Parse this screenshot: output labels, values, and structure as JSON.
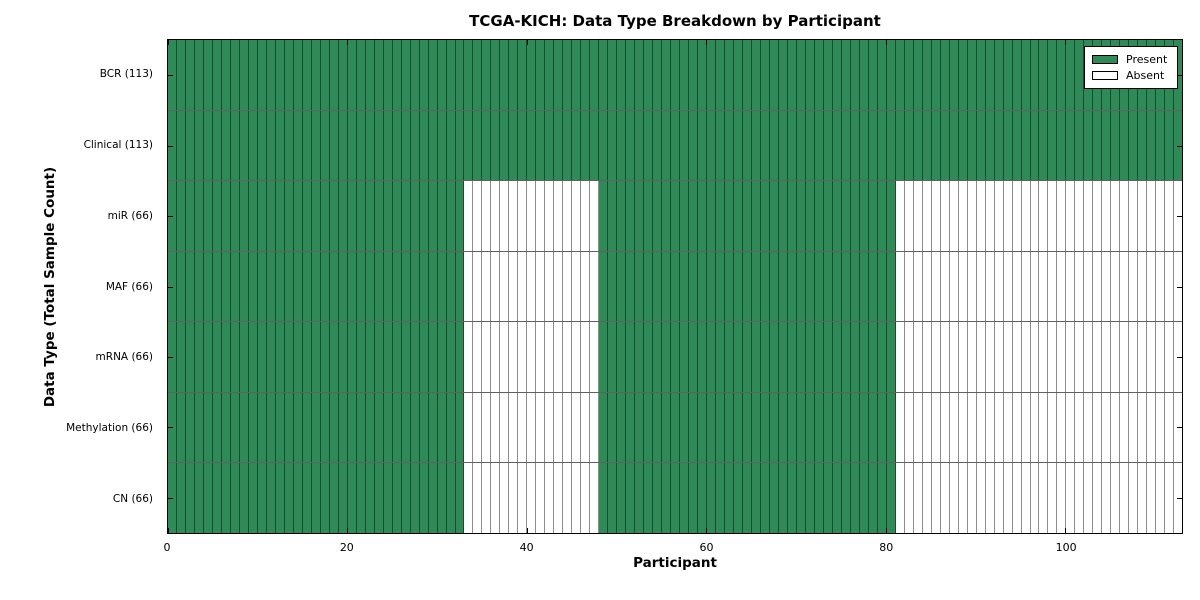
{
  "chart_data": {
    "type": "heatmap",
    "title": "TCGA-KICH: Data Type Breakdown by Participant",
    "xlabel": "Participant",
    "ylabel": "Data Type (Total Sample Count)",
    "participants": 113,
    "x_range": [
      0,
      113
    ],
    "x_ticks": [
      0,
      20,
      40,
      60,
      80,
      100
    ],
    "y_categories": [
      "BCR (113)",
      "Clinical (113)",
      "miR (66)",
      "MAF (66)",
      "mRNA (66)",
      "Methylation (66)",
      "CN (66)"
    ],
    "rows": [
      {
        "label": "BCR (113)",
        "data_type": "BCR",
        "total_samples": 113,
        "present_ranges": [
          [
            0,
            113
          ]
        ]
      },
      {
        "label": "Clinical (113)",
        "data_type": "Clinical",
        "total_samples": 113,
        "present_ranges": [
          [
            0,
            113
          ]
        ]
      },
      {
        "label": "miR (66)",
        "data_type": "miR",
        "total_samples": 66,
        "present_ranges": [
          [
            0,
            33
          ],
          [
            48,
            81
          ]
        ]
      },
      {
        "label": "MAF (66)",
        "data_type": "MAF",
        "total_samples": 66,
        "present_ranges": [
          [
            0,
            33
          ],
          [
            48,
            81
          ]
        ]
      },
      {
        "label": "mRNA (66)",
        "data_type": "mRNA",
        "total_samples": 66,
        "present_ranges": [
          [
            0,
            33
          ],
          [
            48,
            81
          ]
        ]
      },
      {
        "label": "Methylation (66)",
        "data_type": "Methylation",
        "total_samples": 66,
        "present_ranges": [
          [
            0,
            33
          ],
          [
            48,
            81
          ]
        ]
      },
      {
        "label": "CN (66)",
        "data_type": "CN",
        "total_samples": 66,
        "present_ranges": [
          [
            0,
            33
          ],
          [
            48,
            81
          ]
        ]
      }
    ],
    "legend": {
      "position": "upper right",
      "entries": [
        {
          "label": "Present",
          "color": "#2e8b57"
        },
        {
          "label": "Absent",
          "color": "#ffffff"
        }
      ]
    },
    "colors": {
      "present": "#2e8b57",
      "absent": "#ffffff",
      "cell_grid_line": "rgba(0,0,0,0.45)",
      "row_divider": "rgba(0,0,0,0.62)",
      "axes_border": "#000000"
    }
  }
}
